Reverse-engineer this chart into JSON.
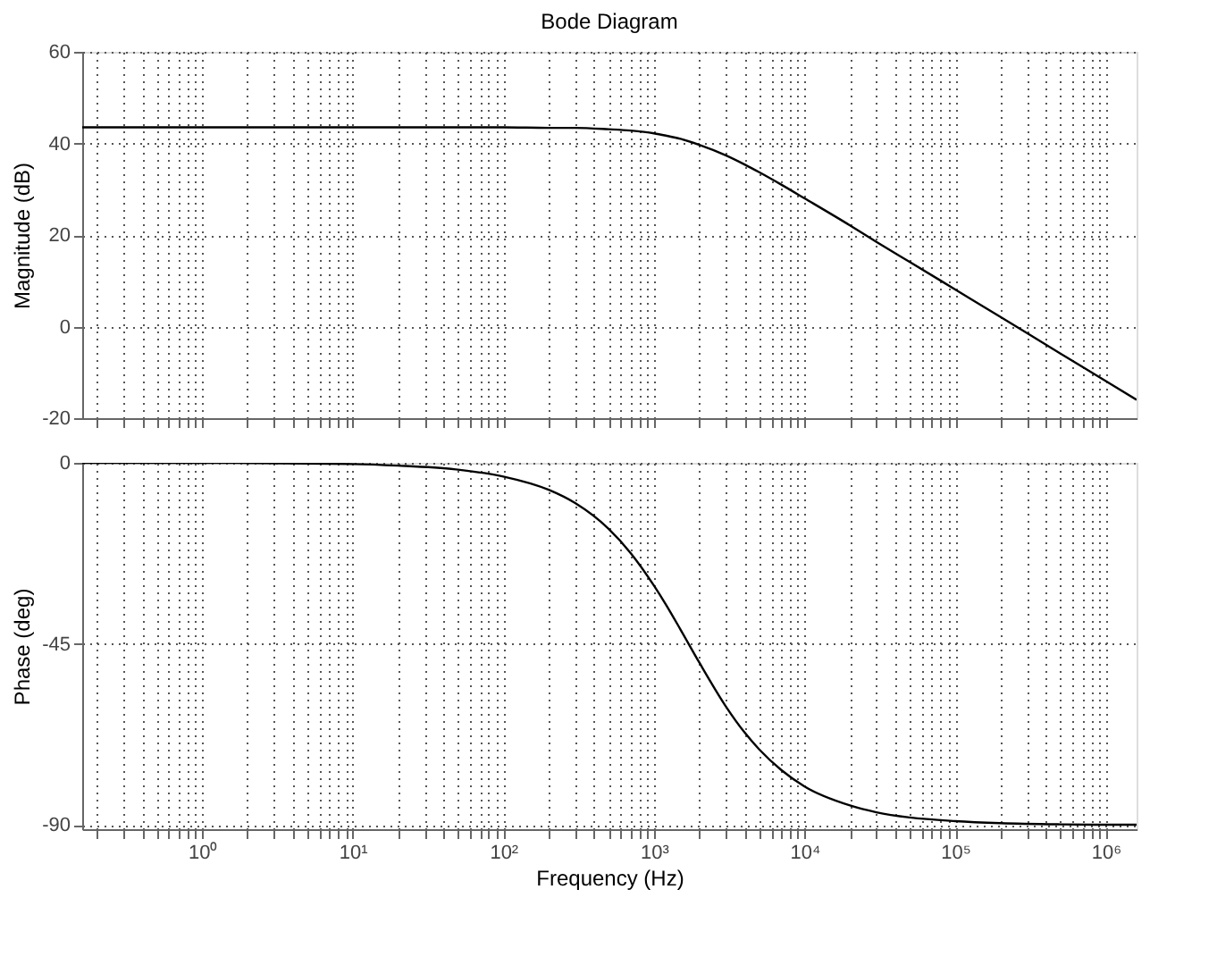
{
  "chart_data": [
    {
      "type": "line",
      "title": "Bode Diagram",
      "ylabel": "Magnitude (dB)",
      "tick_labels": "y",
      "log": "x",
      "grid": true,
      "line_style": "solid",
      "xlim": [
        0.16,
        1600000
      ],
      "ylim": [
        -20,
        60
      ],
      "yticks": [
        -20,
        0,
        20,
        40,
        60
      ],
      "xticks": [
        {
          "value": 0.2,
          "label": null
        },
        {
          "value": 0.3,
          "label": null
        },
        {
          "value": 0.4,
          "label": null
        },
        {
          "value": 0.5,
          "label": null
        },
        {
          "value": 0.6,
          "label": null
        },
        {
          "value": 0.7,
          "label": null
        },
        {
          "value": 0.8,
          "label": null
        },
        {
          "value": 0.9,
          "label": null
        },
        {
          "value": 1,
          "label": null
        },
        {
          "value": 2,
          "label": null
        },
        {
          "value": 3,
          "label": null
        },
        {
          "value": 4,
          "label": null
        },
        {
          "value": 5,
          "label": null
        },
        {
          "value": 6,
          "label": null
        },
        {
          "value": 7,
          "label": null
        },
        {
          "value": 8,
          "label": null
        },
        {
          "value": 9,
          "label": null
        },
        {
          "value": 10,
          "label": null
        },
        {
          "value": 20,
          "label": null
        },
        {
          "value": 30,
          "label": null
        },
        {
          "value": 40,
          "label": null
        },
        {
          "value": 50,
          "label": null
        },
        {
          "value": 60,
          "label": null
        },
        {
          "value": 70,
          "label": null
        },
        {
          "value": 80,
          "label": null
        },
        {
          "value": 90,
          "label": null
        },
        {
          "value": 100,
          "label": null
        },
        {
          "value": 200,
          "label": null
        },
        {
          "value": 300,
          "label": null
        },
        {
          "value": 400,
          "label": null
        },
        {
          "value": 500,
          "label": null
        },
        {
          "value": 600,
          "label": null
        },
        {
          "value": 700,
          "label": null
        },
        {
          "value": 800,
          "label": null
        },
        {
          "value": 900,
          "label": null
        },
        {
          "value": 1000,
          "label": null
        },
        {
          "value": 2000,
          "label": null
        },
        {
          "value": 3000,
          "label": null
        },
        {
          "value": 4000,
          "label": null
        },
        {
          "value": 5000,
          "label": null
        },
        {
          "value": 6000,
          "label": null
        },
        {
          "value": 7000,
          "label": null
        },
        {
          "value": 8000,
          "label": null
        },
        {
          "value": 9000,
          "label": null
        },
        {
          "value": 10000,
          "label": null
        },
        {
          "value": 20000,
          "label": null
        },
        {
          "value": 30000,
          "label": null
        },
        {
          "value": 40000,
          "label": null
        },
        {
          "value": 50000,
          "label": null
        },
        {
          "value": 60000,
          "label": null
        },
        {
          "value": 70000,
          "label": null
        },
        {
          "value": 80000,
          "label": null
        },
        {
          "value": 90000,
          "label": null
        },
        {
          "value": 100000,
          "label": null
        },
        {
          "value": 200000,
          "label": null
        },
        {
          "value": 300000,
          "label": null
        },
        {
          "value": 400000,
          "label": null
        },
        {
          "value": 500000,
          "label": null
        },
        {
          "value": 600000,
          "label": null
        },
        {
          "value": 700000,
          "label": null
        },
        {
          "value": 800000,
          "label": null
        },
        {
          "value": 900000,
          "label": null
        },
        {
          "value": 1000000,
          "label": null
        }
      ],
      "x": [
        0.16,
        1,
        10,
        20,
        50,
        100,
        200,
        300,
        500,
        700,
        1000,
        1200,
        1500,
        2000,
        3000,
        4000,
        5000,
        7000,
        10000,
        20000,
        30000,
        50000,
        100000,
        200000,
        500000,
        1000000,
        1600000
      ],
      "series": [
        {
          "color": "#000000",
          "values": [
            43.5,
            43.5,
            43.5,
            43.5,
            43.5,
            43.5,
            43.4,
            43.4,
            43.1,
            42.8,
            42.2,
            41.7,
            41.0,
            39.7,
            37.4,
            35.4,
            33.7,
            31.0,
            28.0,
            22.1,
            18.5,
            14.1,
            8.1,
            2.1,
            -5.9,
            -11.9,
            -16.0
          ]
        }
      ]
    },
    {
      "type": "line",
      "ylabel": "Phase (deg)",
      "xlabel": "Frequency  (Hz)",
      "log": "x",
      "grid": true,
      "line_style": "solid",
      "xlim": [
        0.16,
        1600000
      ],
      "ylim": [
        -91,
        0
      ],
      "yticks": [
        -90,
        -45,
        0
      ],
      "xticks": [
        {
          "value": 0.2,
          "label": null
        },
        {
          "value": 0.3,
          "label": null
        },
        {
          "value": 0.4,
          "label": null
        },
        {
          "value": 0.5,
          "label": null
        },
        {
          "value": 0.6,
          "label": null
        },
        {
          "value": 0.7,
          "label": null
        },
        {
          "value": 0.8,
          "label": null
        },
        {
          "value": 0.9,
          "label": null
        },
        {
          "value": 1,
          "label": "10⁰"
        },
        {
          "value": 2,
          "label": null
        },
        {
          "value": 3,
          "label": null
        },
        {
          "value": 4,
          "label": null
        },
        {
          "value": 5,
          "label": null
        },
        {
          "value": 6,
          "label": null
        },
        {
          "value": 7,
          "label": null
        },
        {
          "value": 8,
          "label": null
        },
        {
          "value": 9,
          "label": null
        },
        {
          "value": 10,
          "label": "10¹"
        },
        {
          "value": 20,
          "label": null
        },
        {
          "value": 30,
          "label": null
        },
        {
          "value": 40,
          "label": null
        },
        {
          "value": 50,
          "label": null
        },
        {
          "value": 60,
          "label": null
        },
        {
          "value": 70,
          "label": null
        },
        {
          "value": 80,
          "label": null
        },
        {
          "value": 90,
          "label": null
        },
        {
          "value": 100,
          "label": "10²"
        },
        {
          "value": 200,
          "label": null
        },
        {
          "value": 300,
          "label": null
        },
        {
          "value": 400,
          "label": null
        },
        {
          "value": 500,
          "label": null
        },
        {
          "value": 600,
          "label": null
        },
        {
          "value": 700,
          "label": null
        },
        {
          "value": 800,
          "label": null
        },
        {
          "value": 900,
          "label": null
        },
        {
          "value": 1000,
          "label": "10³"
        },
        {
          "value": 2000,
          "label": null
        },
        {
          "value": 3000,
          "label": null
        },
        {
          "value": 4000,
          "label": null
        },
        {
          "value": 5000,
          "label": null
        },
        {
          "value": 6000,
          "label": null
        },
        {
          "value": 7000,
          "label": null
        },
        {
          "value": 8000,
          "label": null
        },
        {
          "value": 9000,
          "label": null
        },
        {
          "value": 10000,
          "label": "10⁴"
        },
        {
          "value": 20000,
          "label": null
        },
        {
          "value": 30000,
          "label": null
        },
        {
          "value": 40000,
          "label": null
        },
        {
          "value": 50000,
          "label": null
        },
        {
          "value": 60000,
          "label": null
        },
        {
          "value": 70000,
          "label": null
        },
        {
          "value": 80000,
          "label": null
        },
        {
          "value": 90000,
          "label": null
        },
        {
          "value": 100000,
          "label": "10⁵"
        },
        {
          "value": 200000,
          "label": null
        },
        {
          "value": 300000,
          "label": null
        },
        {
          "value": 400000,
          "label": null
        },
        {
          "value": 500000,
          "label": null
        },
        {
          "value": 600000,
          "label": null
        },
        {
          "value": 700000,
          "label": null
        },
        {
          "value": 800000,
          "label": null
        },
        {
          "value": 900000,
          "label": null
        },
        {
          "value": 1000000,
          "label": "10⁶"
        }
      ],
      "x": [
        0.16,
        1,
        10,
        20,
        50,
        100,
        200,
        300,
        500,
        700,
        1000,
        1200,
        1500,
        2000,
        3000,
        4000,
        5000,
        7000,
        10000,
        20000,
        30000,
        50000,
        100000,
        200000,
        500000,
        1000000,
        1600000
      ],
      "series": [
        {
          "color": "#000000",
          "values": [
            0,
            0,
            -0.3,
            -0.7,
            -1.7,
            -3.4,
            -6.7,
            -10.0,
            -16.4,
            -22.4,
            -30.5,
            -35.2,
            -41.4,
            -49.6,
            -60.5,
            -67.0,
            -71.2,
            -76.3,
            -80.4,
            -85.1,
            -86.8,
            -88.1,
            -89.0,
            -89.5,
            -89.8,
            -89.9,
            -89.9
          ]
        }
      ]
    }
  ]
}
